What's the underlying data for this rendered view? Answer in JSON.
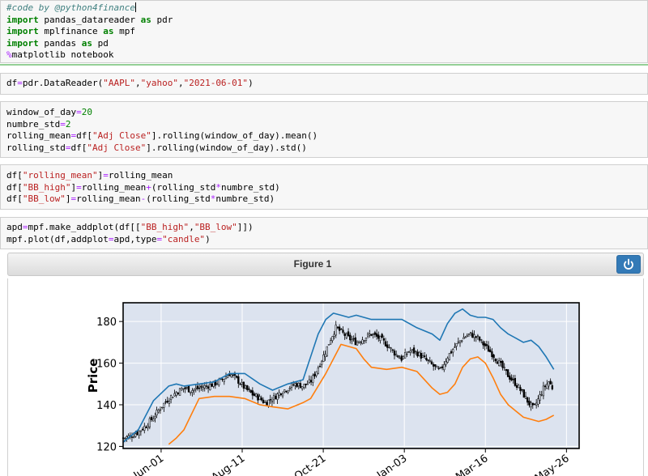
{
  "cells": [
    {
      "lines": [
        [
          {
            "t": "#code by @python4finance",
            "c": "tok-comment"
          },
          {
            "cursor": true
          }
        ],
        [
          {
            "t": "import",
            "c": "tok-kw"
          },
          {
            "t": " pandas_datareader "
          },
          {
            "t": "as",
            "c": "tok-kw"
          },
          {
            "t": " pdr"
          }
        ],
        [
          {
            "t": "import",
            "c": "tok-kw"
          },
          {
            "t": " mplfinance "
          },
          {
            "t": "as",
            "c": "tok-kw"
          },
          {
            "t": " mpf"
          }
        ],
        [
          {
            "t": "import",
            "c": "tok-kw"
          },
          {
            "t": " pandas "
          },
          {
            "t": "as",
            "c": "tok-kw"
          },
          {
            "t": " pd"
          }
        ],
        [
          {
            "t": "%",
            "c": "tok-magic"
          },
          {
            "t": "matplotlib notebook"
          }
        ]
      ]
    },
    {
      "lines": [
        [
          {
            "t": "df"
          },
          {
            "t": "=",
            "c": "tok-op"
          },
          {
            "t": "pdr.DataReader("
          },
          {
            "t": "\"AAPL\"",
            "c": "tok-str"
          },
          {
            "t": ","
          },
          {
            "t": "\"yahoo\"",
            "c": "tok-str"
          },
          {
            "t": ","
          },
          {
            "t": "\"2021-06-01\"",
            "c": "tok-str"
          },
          {
            "t": ")"
          }
        ]
      ]
    },
    {
      "lines": [
        [
          {
            "t": "window_of_day"
          },
          {
            "t": "=",
            "c": "tok-op"
          },
          {
            "t": "20",
            "c": "tok-num"
          }
        ],
        [
          {
            "t": "numbre_std"
          },
          {
            "t": "=",
            "c": "tok-op"
          },
          {
            "t": "2",
            "c": "tok-num"
          }
        ],
        [
          {
            "t": "rolling_mean"
          },
          {
            "t": "=",
            "c": "tok-op"
          },
          {
            "t": "df["
          },
          {
            "t": "\"Adj Close\"",
            "c": "tok-str"
          },
          {
            "t": "].rolling(window_of_day).mean()"
          }
        ],
        [
          {
            "t": "rolling_std"
          },
          {
            "t": "=",
            "c": "tok-op"
          },
          {
            "t": "df["
          },
          {
            "t": "\"Adj Close\"",
            "c": "tok-str"
          },
          {
            "t": "].rolling(window_of_day).std()"
          }
        ]
      ]
    },
    {
      "lines": [
        [
          {
            "t": "df["
          },
          {
            "t": "\"rolling_mean\"",
            "c": "tok-str"
          },
          {
            "t": "]"
          },
          {
            "t": "=",
            "c": "tok-op"
          },
          {
            "t": "rolling_mean"
          }
        ],
        [
          {
            "t": "df["
          },
          {
            "t": "\"BB_high\"",
            "c": "tok-str"
          },
          {
            "t": "]"
          },
          {
            "t": "=",
            "c": "tok-op"
          },
          {
            "t": "rolling_mean"
          },
          {
            "t": "+",
            "c": "tok-op"
          },
          {
            "t": "(rolling_std"
          },
          {
            "t": "*",
            "c": "tok-op"
          },
          {
            "t": "numbre_std)"
          }
        ],
        [
          {
            "t": "df["
          },
          {
            "t": "\"BB_low\"",
            "c": "tok-str"
          },
          {
            "t": "]"
          },
          {
            "t": "=",
            "c": "tok-op"
          },
          {
            "t": "rolling_mean"
          },
          {
            "t": "-",
            "c": "tok-op"
          },
          {
            "t": "(rolling_std"
          },
          {
            "t": "*",
            "c": "tok-op"
          },
          {
            "t": "numbre_std)"
          }
        ]
      ]
    },
    {
      "lines": [
        [
          {
            "t": "apd"
          },
          {
            "t": "=",
            "c": "tok-op"
          },
          {
            "t": "mpf.make_addplot(df[["
          },
          {
            "t": "\"BB_high\"",
            "c": "tok-str"
          },
          {
            "t": ","
          },
          {
            "t": "\"BB_low\"",
            "c": "tok-str"
          },
          {
            "t": "]])"
          }
        ],
        [
          {
            "t": "mpf.plot(df,addplot"
          },
          {
            "t": "=",
            "c": "tok-op"
          },
          {
            "t": "apd,type"
          },
          {
            "t": "=",
            "c": "tok-op"
          },
          {
            "t": "\"candle\"",
            "c": "tok-str"
          },
          {
            "t": ")"
          }
        ]
      ]
    }
  ],
  "figure": {
    "title": "Figure 1",
    "power_icon": "power-icon"
  },
  "colors": {
    "bb_high": "#1f77b4",
    "bb_low": "#ff7f0e",
    "candle": "#000000",
    "plot_bg": "#dce3ef",
    "grid": "#ffffff"
  },
  "chart_data": {
    "type": "candlestick",
    "ylabel": "Price",
    "ylim": [
      119,
      189
    ],
    "yticks": [
      120,
      140,
      160,
      180
    ],
    "xticks": [
      "Jun-01",
      "Aug-11",
      "Oct-21",
      "Jan-03",
      "Mar-16",
      "May-26"
    ],
    "grid": true,
    "close_path": [
      [
        0,
        124
      ],
      [
        6,
        125
      ],
      [
        12,
        127
      ],
      [
        18,
        130
      ],
      [
        24,
        134
      ],
      [
        30,
        139
      ],
      [
        36,
        143
      ],
      [
        42,
        146
      ],
      [
        48,
        148
      ],
      [
        54,
        147
      ],
      [
        60,
        148
      ],
      [
        66,
        149
      ],
      [
        72,
        150
      ],
      [
        78,
        152
      ],
      [
        84,
        155
      ],
      [
        90,
        152
      ],
      [
        96,
        148
      ],
      [
        102,
        145
      ],
      [
        108,
        143
      ],
      [
        112,
        141
      ],
      [
        118,
        143
      ],
      [
        124,
        146
      ],
      [
        130,
        148
      ],
      [
        136,
        150
      ],
      [
        142,
        149
      ],
      [
        148,
        151
      ],
      [
        154,
        158
      ],
      [
        160,
        166
      ],
      [
        164,
        172
      ],
      [
        168,
        177
      ],
      [
        172,
        175
      ],
      [
        178,
        172
      ],
      [
        184,
        170
      ],
      [
        190,
        172
      ],
      [
        196,
        174
      ],
      [
        202,
        172
      ],
      [
        208,
        169
      ],
      [
        214,
        165
      ],
      [
        220,
        162
      ],
      [
        226,
        166
      ],
      [
        232,
        165
      ],
      [
        238,
        162
      ],
      [
        244,
        159
      ],
      [
        250,
        156
      ],
      [
        256,
        163
      ],
      [
        262,
        168
      ],
      [
        268,
        172
      ],
      [
        274,
        174
      ],
      [
        280,
        172
      ],
      [
        286,
        168
      ],
      [
        292,
        164
      ],
      [
        298,
        159
      ],
      [
        304,
        154
      ],
      [
        310,
        150
      ],
      [
        316,
        145
      ],
      [
        320,
        141
      ],
      [
        324,
        138
      ],
      [
        328,
        143
      ],
      [
        332,
        148
      ],
      [
        336,
        151
      ],
      [
        340,
        147
      ]
    ],
    "series": [
      {
        "key": "bb_high",
        "x": [
          0,
          12,
          24,
          36,
          42,
          48,
          60,
          72,
          84,
          96,
          108,
          118,
          130,
          142,
          154,
          160,
          166,
          172,
          178,
          184,
          196,
          208,
          220,
          232,
          244,
          250,
          256,
          262,
          268,
          274,
          280,
          286,
          292,
          298,
          304,
          310,
          316,
          322,
          328,
          334,
          340
        ],
        "y": [
          122,
          128,
          142,
          149,
          150,
          149,
          150,
          151,
          155,
          155,
          150,
          147,
          150,
          152,
          174,
          181,
          184,
          183,
          182,
          183,
          181,
          181,
          181,
          177,
          174,
          171,
          179,
          184,
          186,
          183,
          182,
          182,
          181,
          177,
          174,
          172,
          170,
          171,
          168,
          163,
          157
        ]
      },
      {
        "key": "bb_low",
        "x": [
          36,
          42,
          48,
          60,
          72,
          84,
          96,
          108,
          118,
          130,
          142,
          148,
          154,
          160,
          166,
          172,
          178,
          184,
          190,
          196,
          208,
          220,
          232,
          244,
          250,
          256,
          262,
          268,
          274,
          280,
          286,
          292,
          298,
          304,
          310,
          316,
          322,
          328,
          334,
          340
        ],
        "y": [
          121,
          124,
          128,
          143,
          144,
          144,
          143,
          140,
          139,
          138,
          141,
          143,
          149,
          155,
          162,
          169,
          168,
          167,
          162,
          158,
          157,
          158,
          156,
          148,
          145,
          146,
          150,
          158,
          162,
          163,
          160,
          153,
          145,
          140,
          137,
          134,
          133,
          132,
          133,
          135
        ]
      }
    ]
  }
}
